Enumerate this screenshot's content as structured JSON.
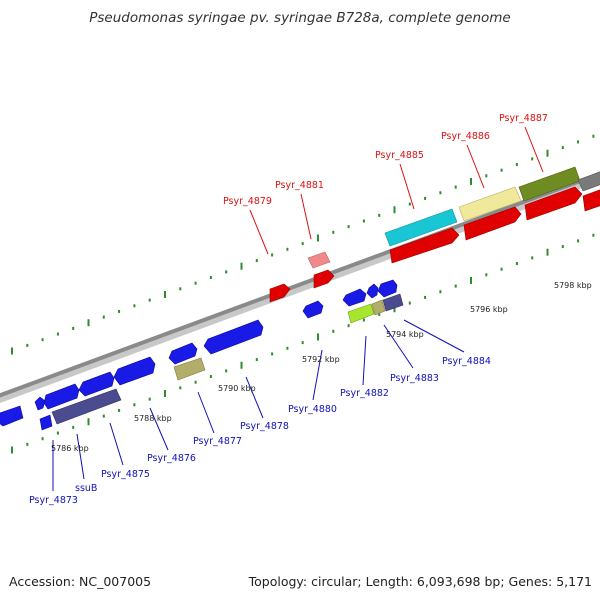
{
  "title": "Pseudomonas syringae pv. syringae B728a, complete genome",
  "footer": {
    "accession": "Accession: NC_007005",
    "summary": "Topology: circular; Length: 6,093,698 bp; Genes: 5,171"
  },
  "colors": {
    "backbone": "#8a8a8a",
    "tick": "#2e8b2e",
    "label_forward": "#dd1111",
    "label_reverse": "#1111bb",
    "scale_text": "#222222"
  },
  "scale_ticks": {
    "upper": [
      "5798 kbp"
    ],
    "lower": [
      "5786 kbp",
      "5788 kbp",
      "5790 kbp",
      "5792 kbp",
      "5794 kbp",
      "5796 kbp"
    ]
  },
  "genes_forward": [
    {
      "name": "Psyr_4879",
      "color": "#e60000"
    },
    {
      "name": "Psyr_4881",
      "color": "#e60000"
    },
    {
      "name": "Psyr_4885",
      "color": "#19c7d4"
    },
    {
      "name": "Psyr_4886",
      "color": "#f0e89a"
    },
    {
      "name": "Psyr_4887",
      "color": "#6e8c22"
    }
  ],
  "genes_reverse": [
    {
      "name": "Psyr_4873",
      "color": "#1a1ae6"
    },
    {
      "name": "ssuB",
      "color": "#1a1ae6"
    },
    {
      "name": "Psyr_4875",
      "color": "#4b4b8f"
    },
    {
      "name": "Psyr_4876",
      "color": "#1a1ae6"
    },
    {
      "name": "Psyr_4877",
      "color": "#b3ad6b"
    },
    {
      "name": "Psyr_4878",
      "color": "#1a1ae6"
    },
    {
      "name": "Psyr_4880",
      "color": "#1a1ae6"
    },
    {
      "name": "Psyr_4882",
      "color": "#a8e62e"
    },
    {
      "name": "Psyr_4883",
      "color": "#b3ad6b"
    },
    {
      "name": "Psyr_4884",
      "color": "#4b4b8f"
    }
  ]
}
